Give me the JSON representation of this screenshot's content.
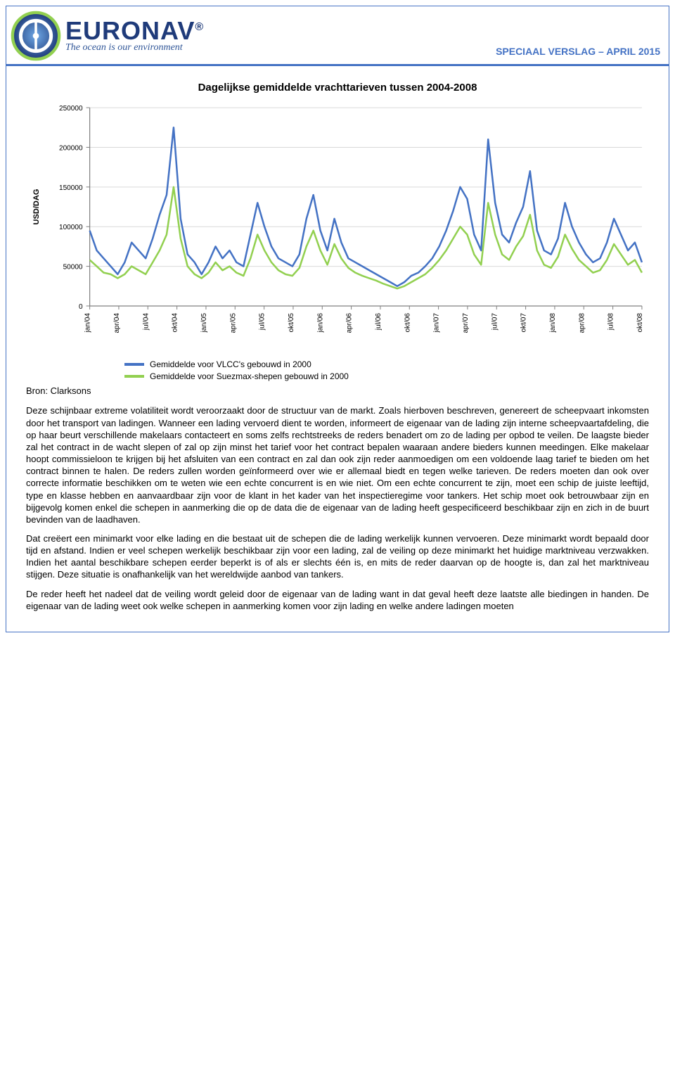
{
  "header": {
    "logo_text": "EURONAV",
    "logo_reg": "®",
    "tagline": "The ocean is our environment",
    "report_tag": "SPECIAAL VERSLAG – APRIL 2015"
  },
  "chart": {
    "type": "line",
    "title": "Dagelijkse gemiddelde vrachttarieven tussen 2004-2008",
    "y_label": "USD/DAG",
    "ylim": [
      0,
      250000
    ],
    "ytick_step": 50000,
    "yticks": [
      "0",
      "50000",
      "100000",
      "150000",
      "200000",
      "250000"
    ],
    "x_categories": [
      "jan/04",
      "apr/04",
      "jul/04",
      "okt/04",
      "jan/05",
      "apr/05",
      "jul/05",
      "okt/05",
      "jan/06",
      "apr/06",
      "jul/06",
      "okt/06",
      "jan/07",
      "apr/07",
      "jul/07",
      "okt/07",
      "jan/08",
      "apr/08",
      "jul/08",
      "okt/08"
    ],
    "series": [
      {
        "name": "Gemiddelde voor VLCC's gebouwd in 2000",
        "color": "#4472c4",
        "stroke_width": 2.5,
        "values": [
          95000,
          70000,
          60000,
          50000,
          40000,
          55000,
          80000,
          70000,
          60000,
          85000,
          115000,
          140000,
          225000,
          110000,
          65000,
          55000,
          40000,
          55000,
          75000,
          60000,
          70000,
          55000,
          50000,
          90000,
          130000,
          100000,
          75000,
          60000,
          55000,
          50000,
          65000,
          110000,
          140000,
          95000,
          70000,
          110000,
          80000,
          60000,
          55000,
          50000,
          45000,
          40000,
          35000,
          30000,
          25000,
          30000,
          38000,
          42000,
          50000,
          60000,
          75000,
          95000,
          120000,
          150000,
          135000,
          90000,
          70000,
          210000,
          130000,
          90000,
          80000,
          105000,
          125000,
          170000,
          95000,
          70000,
          65000,
          85000,
          130000,
          100000,
          80000,
          65000,
          55000,
          60000,
          80000,
          110000,
          90000,
          70000,
          80000,
          55000
        ]
      },
      {
        "name": "Gemiddelde voor Suezmax-shepen gebouwd in 2000",
        "color": "#92d050",
        "stroke_width": 2.5,
        "values": [
          58000,
          50000,
          42000,
          40000,
          35000,
          40000,
          50000,
          45000,
          40000,
          55000,
          70000,
          90000,
          150000,
          85000,
          50000,
          40000,
          35000,
          42000,
          55000,
          45000,
          50000,
          42000,
          38000,
          60000,
          90000,
          70000,
          55000,
          45000,
          40000,
          38000,
          48000,
          75000,
          95000,
          70000,
          52000,
          78000,
          60000,
          48000,
          42000,
          38000,
          35000,
          32000,
          28000,
          25000,
          22000,
          25000,
          30000,
          35000,
          40000,
          48000,
          58000,
          70000,
          85000,
          100000,
          90000,
          65000,
          52000,
          130000,
          90000,
          65000,
          58000,
          75000,
          88000,
          115000,
          70000,
          52000,
          48000,
          62000,
          90000,
          72000,
          58000,
          50000,
          42000,
          45000,
          58000,
          78000,
          65000,
          52000,
          58000,
          42000
        ]
      }
    ],
    "axis_color": "#808080",
    "grid_color": "#d9d9d9",
    "background_color": "#ffffff",
    "label_fontsize": 11,
    "tick_fontsize": 10
  },
  "source_label": "Bron: Clarksons",
  "paragraphs": [
    "Deze schijnbaar extreme volatiliteit wordt veroorzaakt door de structuur van de markt. Zoals hierboven beschreven, genereert de scheepvaart inkomsten door het transport van ladingen. Wanneer een lading vervoerd dient te worden, informeert de eigenaar van de lading zijn interne scheepvaartafdeling, die op haar beurt verschillende makelaars contacteert en soms zelfs rechtstreeks de reders benadert om zo de lading per opbod te veilen. De laagste bieder zal het contract in de wacht slepen of zal op zijn minst het tarief voor het contract bepalen waaraan andere bieders kunnen meedingen. Elke makelaar hoopt commissieloon te krijgen bij het afsluiten van een contract en zal dan ook zijn reder aanmoedigen om een voldoende laag tarief te bieden om het contract binnen te halen. De reders zullen worden geïnformeerd over wie er allemaal biedt en tegen welke tarieven. De reders moeten dan ook over correcte informatie beschikken om te weten wie een echte concurrent is en wie niet. Om een echte concurrent te zijn, moet een schip de juiste leeftijd, type en klasse hebben en aanvaardbaar zijn voor de klant in het kader van het inspectieregime voor tankers. Het schip moet ook betrouwbaar zijn en bijgevolg komen enkel die schepen in aanmerking die op de data die de eigenaar van de lading heeft gespecificeerd beschikbaar zijn en zich in de buurt bevinden van de laadhaven.",
    "Dat creëert een minimarkt voor elke lading en die bestaat uit de schepen die de lading werkelijk kunnen vervoeren. Deze minimarkt wordt bepaald door tijd en afstand. Indien er veel schepen werkelijk beschikbaar zijn voor een lading, zal de veiling op deze minimarkt het huidige marktniveau verzwakken. Indien het aantal beschikbare schepen eerder beperkt is of als er slechts één is, en mits de reder daarvan op de hoogte is, dan zal het marktniveau stijgen. Deze situatie is onafhankelijk van het wereldwijde aanbod van tankers.",
    "De reder heeft het nadeel dat de veiling wordt geleid door de eigenaar van de lading want in dat geval heeft deze laatste alle biedingen in handen. De eigenaar van de lading weet ook welke schepen in aanmerking komen voor zijn lading en welke andere ladingen moeten"
  ]
}
